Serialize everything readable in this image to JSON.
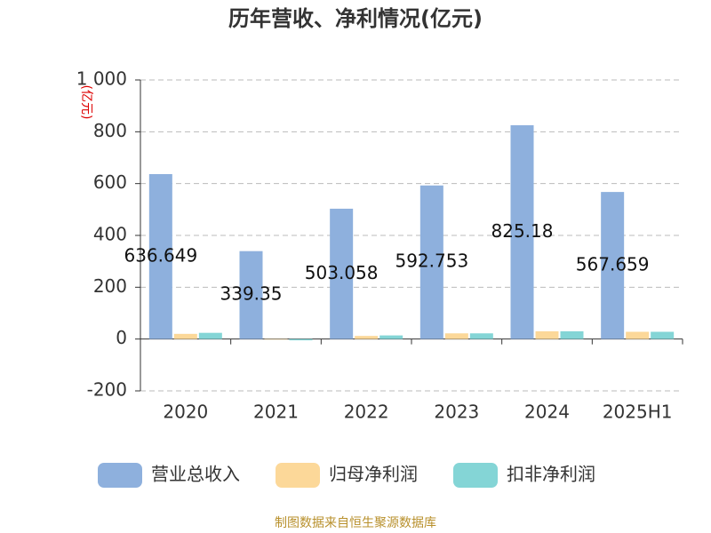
{
  "chart_data": {
    "type": "bar",
    "title": "历年营收、净利情况(亿元)",
    "y_label": "(亿元)",
    "categories": [
      "2020",
      "2021",
      "2022",
      "2023",
      "2024",
      "2025H1"
    ],
    "series": [
      {
        "name": "营业总收入",
        "color": "#8eb0dd",
        "values": [
          636.649,
          339.35,
          503.058,
          592.753,
          825.18,
          567.659
        ]
      },
      {
        "name": "归母净利润",
        "color": "#fcd899",
        "values": [
          20,
          -2,
          12,
          22,
          30,
          28
        ]
      },
      {
        "name": "扣非净利润",
        "color": "#84d5d6",
        "values": [
          24,
          -5,
          14,
          22,
          30,
          28
        ]
      }
    ],
    "ylim": [
      -200,
      1000
    ],
    "yticks": [
      -200,
      0,
      200,
      400,
      600,
      800,
      {
        "value": 1000,
        "label": "1 000"
      }
    ],
    "grid": true,
    "legend": "bottom",
    "source": "制图数据来自恒生聚源数据库"
  }
}
